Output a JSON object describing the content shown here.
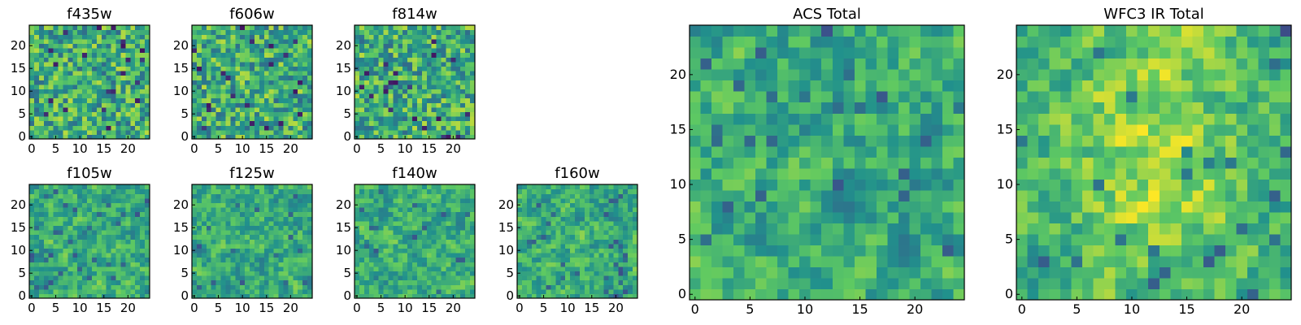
{
  "figure": {
    "colormap": "viridis",
    "colormap_stops": [
      "#440154",
      "#3b528b",
      "#21918c",
      "#5ec962",
      "#fde725"
    ]
  },
  "chart_data": [
    {
      "type": "heatmap",
      "title": "f435w",
      "grid": [
        25,
        25
      ],
      "xlim": [
        0,
        24
      ],
      "ylim": [
        0,
        24
      ],
      "xticks": [
        "0",
        "5",
        "10",
        "15",
        "20"
      ],
      "yticks": [
        "0",
        "5",
        "10",
        "15",
        "20"
      ]
    },
    {
      "type": "heatmap",
      "title": "f606w",
      "grid": [
        25,
        25
      ],
      "xlim": [
        0,
        24
      ],
      "ylim": [
        0,
        24
      ],
      "xticks": [
        "0",
        "5",
        "10",
        "15",
        "20"
      ],
      "yticks": [
        "0",
        "5",
        "10",
        "15",
        "20"
      ]
    },
    {
      "type": "heatmap",
      "title": "f814w",
      "grid": [
        25,
        25
      ],
      "xlim": [
        0,
        24
      ],
      "ylim": [
        0,
        24
      ],
      "xticks": [
        "0",
        "5",
        "10",
        "15",
        "20"
      ],
      "yticks": [
        "0",
        "5",
        "10",
        "15",
        "20"
      ]
    },
    {
      "type": "heatmap",
      "title": "f105w",
      "grid": [
        25,
        25
      ],
      "xlim": [
        0,
        24
      ],
      "ylim": [
        0,
        24
      ],
      "xticks": [
        "0",
        "5",
        "10",
        "15",
        "20"
      ],
      "yticks": [
        "0",
        "5",
        "10",
        "15",
        "20"
      ]
    },
    {
      "type": "heatmap",
      "title": "f125w",
      "grid": [
        25,
        25
      ],
      "xlim": [
        0,
        24
      ],
      "ylim": [
        0,
        24
      ],
      "xticks": [
        "0",
        "5",
        "10",
        "15",
        "20"
      ],
      "yticks": [
        "0",
        "5",
        "10",
        "15",
        "20"
      ]
    },
    {
      "type": "heatmap",
      "title": "f140w",
      "grid": [
        25,
        25
      ],
      "xlim": [
        0,
        24
      ],
      "ylim": [
        0,
        24
      ],
      "xticks": [
        "0",
        "5",
        "10",
        "15",
        "20"
      ],
      "yticks": [
        "0",
        "5",
        "10",
        "15",
        "20"
      ]
    },
    {
      "type": "heatmap",
      "title": "f160w",
      "grid": [
        25,
        25
      ],
      "xlim": [
        0,
        24
      ],
      "ylim": [
        0,
        24
      ],
      "xticks": [
        "0",
        "5",
        "10",
        "15",
        "20"
      ],
      "yticks": [
        "0",
        "5",
        "10",
        "15",
        "20"
      ]
    },
    {
      "type": "heatmap",
      "title": "ACS Total",
      "grid": [
        25,
        25
      ],
      "xlim": [
        0,
        24
      ],
      "ylim": [
        0,
        24
      ],
      "xticks": [
        "0",
        "5",
        "10",
        "15",
        "20"
      ],
      "yticks": [
        "0",
        "5",
        "10",
        "15",
        "20"
      ]
    },
    {
      "type": "heatmap",
      "title": "WFC3 IR Total",
      "grid": [
        25,
        25
      ],
      "xlim": [
        0,
        24
      ],
      "ylim": [
        0,
        24
      ],
      "xticks": [
        "0",
        "5",
        "10",
        "15",
        "20"
      ],
      "yticks": [
        "0",
        "5",
        "10",
        "15",
        "20"
      ]
    }
  ]
}
